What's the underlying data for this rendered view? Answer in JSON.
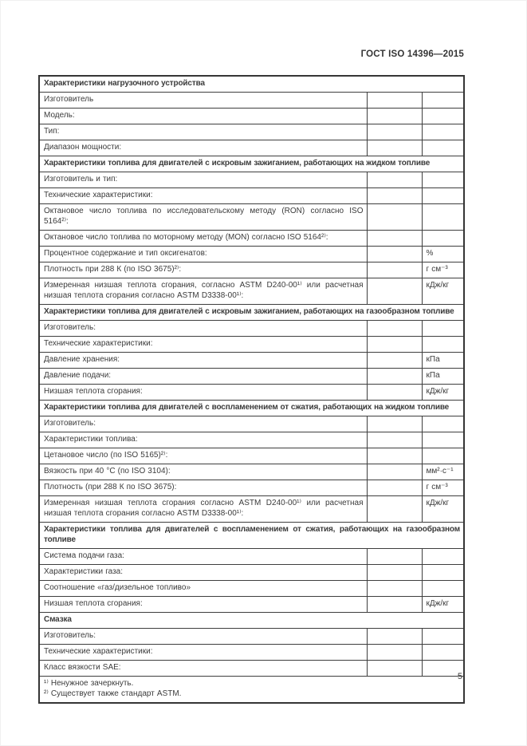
{
  "page": {
    "doc_header": "ГОСТ ISO 14396—2015",
    "page_number": "5"
  },
  "theme": {
    "background": "#ffffff",
    "text": "#3b3b3b",
    "border": "#3a3a3a"
  },
  "table": {
    "sections": [
      {
        "title": "Характеристики нагрузочного устройства",
        "rows": [
          {
            "label": "Изготовитель",
            "unit": ""
          },
          {
            "label": "Модель:",
            "unit": ""
          },
          {
            "label": "Тип:",
            "unit": ""
          },
          {
            "label": "Диапазон мощности:",
            "unit": ""
          }
        ]
      },
      {
        "title": "Характеристики топлива для двигателей с искровым зажиганием, работающих на жидком топливе",
        "rows": [
          {
            "label": "Изготовитель и тип:",
            "unit": ""
          },
          {
            "label": "Технические характеристики:",
            "unit": ""
          },
          {
            "label": "Октановое число топлива по исследовательскому методу (RON) согласно ISO 5164²⁾:",
            "unit": ""
          },
          {
            "label": "Октановое число топлива по моторному методу (MON) согласно ISO 5164²⁾:",
            "unit": ""
          },
          {
            "label": "Процентное содержание и тип оксигенатов:",
            "unit": "%"
          },
          {
            "label": "Плотность при 288 К (по ISO 3675)²⁾:",
            "unit": "г см⁻³"
          },
          {
            "label": "Измеренная низшая теплота сгорания, согласно ASTM D240-00¹⁾ или расчетная низшая теплота сгорания согласно ASTM D3338-00¹⁾:",
            "unit": "кДж/кг"
          }
        ]
      },
      {
        "title": "Характеристики топлива для двигателей с искровым зажиганием, работающих на газообразном топливе",
        "rows": [
          {
            "label": "Изготовитель:",
            "unit": ""
          },
          {
            "label": "Технические характеристики:",
            "unit": ""
          },
          {
            "label": "Давление хранения:",
            "unit": "кПа"
          },
          {
            "label": "Давление подачи:",
            "unit": "кПа"
          },
          {
            "label": "Низшая теплота сгорания:",
            "unit": "кДж/кг"
          }
        ]
      },
      {
        "title": "Характеристики топлива для двигателей с воспламенением от сжатия, работающих на жидком топливе",
        "rows": [
          {
            "label": "Изготовитель:",
            "unit": ""
          },
          {
            "label": "Характеристики топлива:",
            "unit": ""
          },
          {
            "label": "Цетановое число (по ISO 5165)²⁾:",
            "unit": ""
          },
          {
            "label": "Вязкость при 40 °С (по ISO 3104):",
            "unit": "мм²·с⁻¹"
          },
          {
            "label": "Плотность (при 288 К по ISO 3675):",
            "unit": "г см⁻³"
          },
          {
            "label": "Измеренная низшая теплота сгорания согласно ASTM D240-00¹⁾ или расчетная низшая теплота сгорания согласно ASTM D3338-00¹⁾:",
            "unit": "кДж/кг"
          }
        ]
      },
      {
        "title": "Характеристики топлива для двигателей с воспламенением от сжатия, работающих на газообразном топливе",
        "rows": [
          {
            "label": "Система подачи газа:",
            "unit": ""
          },
          {
            "label": "Характеристики газа:",
            "unit": ""
          },
          {
            "label": "Соотношение «газ/дизельное топливо»",
            "unit": ""
          },
          {
            "label": "Низшая теплота сгорания:",
            "unit": "кДж/кг"
          }
        ]
      },
      {
        "title": "Смазка",
        "rows": [
          {
            "label": "Изготовитель:",
            "unit": ""
          },
          {
            "label": "Технические характеристики:",
            "unit": ""
          },
          {
            "label": "Класс вязкости SAE:",
            "unit": ""
          }
        ]
      }
    ],
    "footnotes": [
      "¹⁾ Ненужное зачеркнуть.",
      "²⁾ Существует также стандарт ASTM."
    ]
  }
}
